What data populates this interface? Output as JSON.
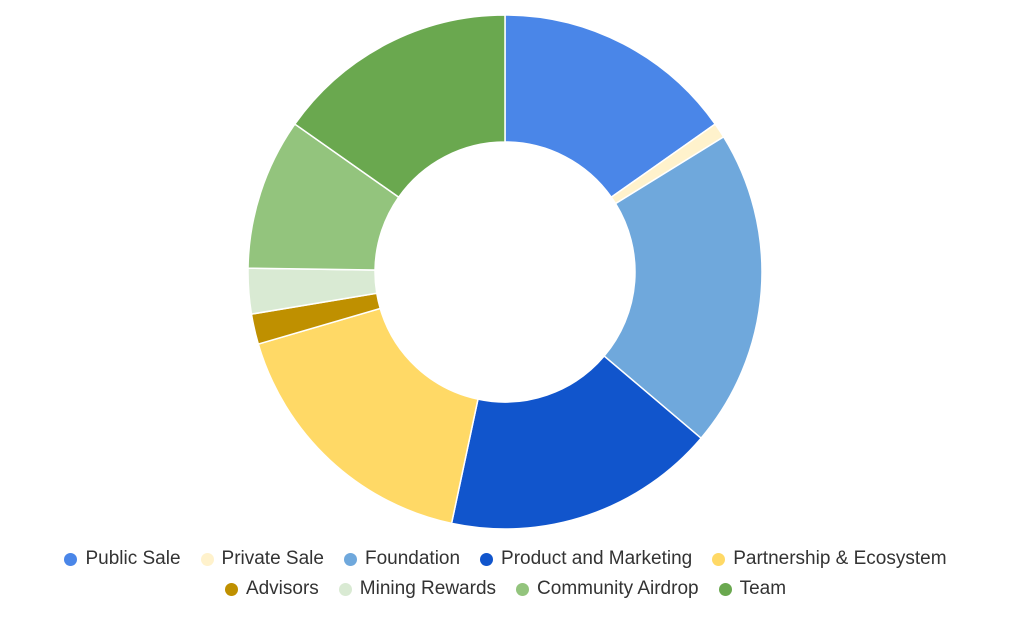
{
  "chart_data": {
    "type": "pie",
    "donut": true,
    "legend_position": "bottom",
    "slices": [
      {
        "label": "Public Sale",
        "value": 16,
        "color": "#4a86e8"
      },
      {
        "label": "Private Sale",
        "value": 1,
        "color": "#fff2cc"
      },
      {
        "label": "Foundation",
        "value": 21,
        "color": "#6fa8dc"
      },
      {
        "label": "Product and Marketing",
        "value": 18,
        "color": "#1155cc"
      },
      {
        "label": "Partnership & Ecosystem",
        "value": 18,
        "color": "#ffd966"
      },
      {
        "label": "Advisors",
        "value": 2,
        "color": "#bf9000"
      },
      {
        "label": "Mining Rewards",
        "value": 3,
        "color": "#d9ead3"
      },
      {
        "label": "Community Airdrop",
        "value": 10,
        "color": "#93c47d"
      },
      {
        "label": "Team",
        "value": 16,
        "color": "#6aa84f"
      }
    ]
  }
}
